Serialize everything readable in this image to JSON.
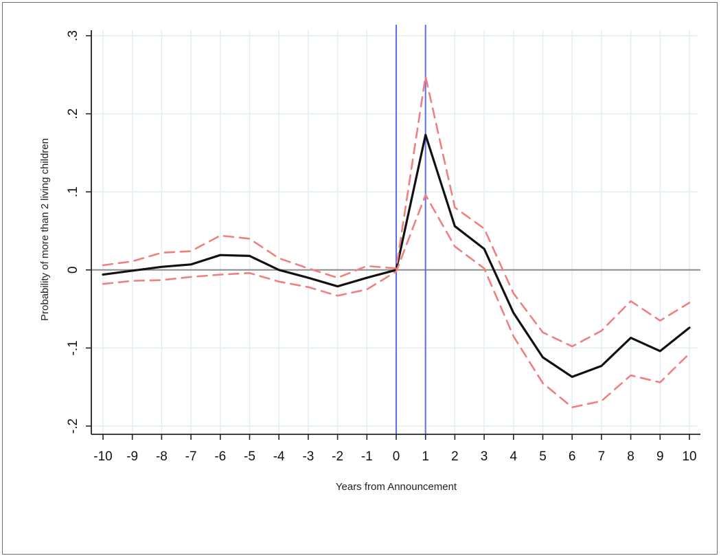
{
  "chart_data": {
    "type": "line",
    "title": "",
    "xlabel": "Years from Announcement",
    "ylabel": "Probability of more than 2 living children",
    "xlim": [
      -10,
      10
    ],
    "ylim": [
      -0.2,
      0.3
    ],
    "x": [
      -10,
      -9,
      -8,
      -7,
      -6,
      -5,
      -4,
      -3,
      -2,
      -1,
      0,
      1,
      2,
      3,
      4,
      5,
      6,
      7,
      8,
      9,
      10
    ],
    "x_tick_labels": [
      "-10",
      "-9",
      "-8",
      "-7",
      "-6",
      "-5",
      "-4",
      "-3",
      "-2",
      "-1",
      "0",
      "1",
      "2",
      "3",
      "4",
      "5",
      "6",
      "7",
      "8",
      "9",
      "10"
    ],
    "y_ticks": [
      -0.2,
      -0.1,
      0,
      0.1,
      0.2,
      0.3
    ],
    "y_tick_labels": [
      "-.2",
      "-.1",
      "0",
      ".1",
      ".2",
      ".3"
    ],
    "grid": true,
    "reference_lines": {
      "horizontal": [
        0
      ],
      "vertical": [
        0,
        1
      ]
    },
    "series": [
      {
        "role": "estimate",
        "color": "#111111",
        "style": "solid",
        "values": [
          -0.006,
          -0.001,
          0.004,
          0.007,
          0.019,
          0.018,
          0.0,
          -0.01,
          -0.021,
          -0.01,
          0.0,
          0.173,
          0.056,
          0.027,
          -0.055,
          -0.112,
          -0.137,
          -0.123,
          -0.087,
          -0.104,
          -0.074
        ]
      },
      {
        "role": "upper-ci",
        "color": "#f08080",
        "style": "dashed",
        "values": [
          0.006,
          0.011,
          0.022,
          0.024,
          0.044,
          0.04,
          0.015,
          0.002,
          -0.01,
          0.005,
          0.002,
          0.248,
          0.08,
          0.053,
          -0.03,
          -0.08,
          -0.098,
          -0.078,
          -0.04,
          -0.065,
          -0.042
        ]
      },
      {
        "role": "lower-ci",
        "color": "#f08080",
        "style": "dashed",
        "values": [
          -0.018,
          -0.014,
          -0.013,
          -0.009,
          -0.006,
          -0.004,
          -0.015,
          -0.022,
          -0.033,
          -0.025,
          -0.002,
          0.096,
          0.03,
          0.002,
          -0.085,
          -0.145,
          -0.176,
          -0.168,
          -0.135,
          -0.144,
          -0.107
        ]
      }
    ],
    "colors": {
      "grid": "#e1eef2",
      "zero_line": "#8a8a8a",
      "vline": "#5b6cf0",
      "axis": "#222222"
    }
  }
}
